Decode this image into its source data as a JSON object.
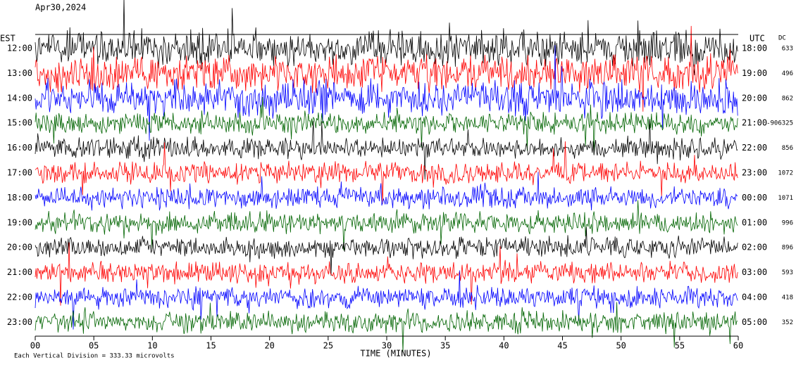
{
  "chart_data": {
    "type": "helicorder",
    "title": "Apr30,2024",
    "left_header": "EST",
    "right_header": "UTC",
    "dc_header": "DC",
    "xlabel": "TIME (MINUTES)",
    "footer": "Each Vertical Division =  333.33 microvolts",
    "xlim": [
      0,
      60
    ],
    "xticks": [
      {
        "value": 0,
        "label": "00"
      },
      {
        "value": 5,
        "label": "05"
      },
      {
        "value": 10,
        "label": "10"
      },
      {
        "value": 15,
        "label": "15"
      },
      {
        "value": 20,
        "label": "20"
      },
      {
        "value": 25,
        "label": "25"
      },
      {
        "value": 30,
        "label": "30"
      },
      {
        "value": 35,
        "label": "35"
      },
      {
        "value": 40,
        "label": "40"
      },
      {
        "value": 45,
        "label": "45"
      },
      {
        "value": 50,
        "label": "50"
      },
      {
        "value": 55,
        "label": "55"
      },
      {
        "value": 60,
        "label": "60"
      }
    ],
    "rows": [
      {
        "est": "12:00",
        "utc": "18:00",
        "dc": 633,
        "color": "#000000"
      },
      {
        "est": "13:00",
        "utc": "19:00",
        "dc": 496,
        "color": "#ff0000"
      },
      {
        "est": "14:00",
        "utc": "20:00",
        "dc": 862,
        "color": "#0000ff"
      },
      {
        "est": "15:00",
        "utc": "21:00",
        "dc": -906325,
        "color": "#006400"
      },
      {
        "est": "16:00",
        "utc": "22:00",
        "dc": 856,
        "color": "#000000"
      },
      {
        "est": "17:00",
        "utc": "23:00",
        "dc": 1072,
        "color": "#ff0000"
      },
      {
        "est": "18:00",
        "utc": "00:00",
        "dc": 1071,
        "color": "#0000ff"
      },
      {
        "est": "19:00",
        "utc": "01:00",
        "dc": 996,
        "color": "#006400"
      },
      {
        "est": "20:00",
        "utc": "02:00",
        "dc": 896,
        "color": "#000000"
      },
      {
        "est": "21:00",
        "utc": "03:00",
        "dc": 593,
        "color": "#ff0000"
      },
      {
        "est": "22:00",
        "utc": "04:00",
        "dc": 418,
        "color": "#0000ff"
      },
      {
        "est": "23:00",
        "utc": "05:00",
        "dc": 352,
        "color": "#006400"
      }
    ]
  }
}
